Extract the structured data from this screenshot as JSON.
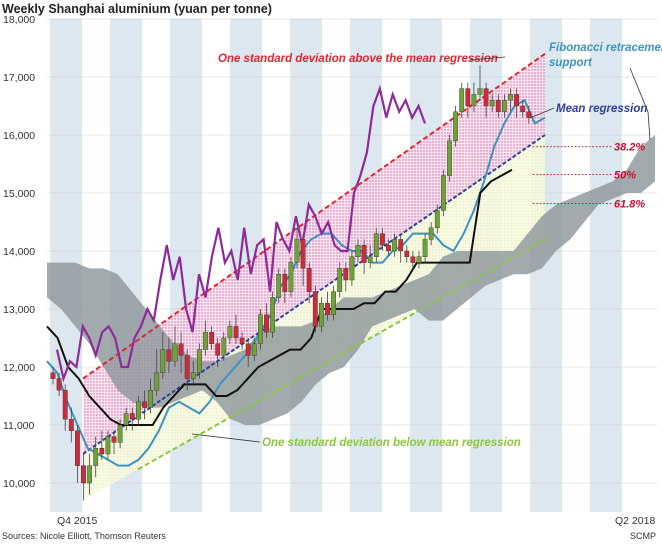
{
  "chart_data": {
    "type": "candlestick",
    "title": "Weekly Shanghai aluminium (yuan per tonne)",
    "ylim": [
      9500,
      18000
    ],
    "y_ticks": [
      "18,000",
      "17,000",
      "16,000",
      "15,000",
      "14,000",
      "13,000",
      "12,000",
      "11,000",
      "10,000"
    ],
    "y_tick_values": [
      18000,
      17000,
      16000,
      15000,
      14000,
      13000,
      12000,
      11000,
      10000
    ],
    "x_labels": [
      "Q4 2015",
      "Q2 2018"
    ],
    "candles": [
      {
        "o": 11900,
        "c": 11800,
        "h": 12000,
        "l": 11700
      },
      {
        "o": 11800,
        "c": 11600,
        "h": 11900,
        "l": 11500
      },
      {
        "o": 11600,
        "c": 11100,
        "h": 11700,
        "l": 10900
      },
      {
        "o": 11100,
        "c": 10900,
        "h": 11300,
        "l": 10700
      },
      {
        "o": 10900,
        "c": 10300,
        "h": 11000,
        "l": 10000
      },
      {
        "o": 10300,
        "c": 10000,
        "h": 10500,
        "l": 9700
      },
      {
        "o": 10000,
        "c": 10300,
        "h": 10500,
        "l": 9800
      },
      {
        "o": 10300,
        "c": 10600,
        "h": 10800,
        "l": 10100
      },
      {
        "o": 10600,
        "c": 10500,
        "h": 10900,
        "l": 10400
      },
      {
        "o": 10500,
        "c": 10800,
        "h": 10900,
        "l": 10400
      },
      {
        "o": 10800,
        "c": 10700,
        "h": 10900,
        "l": 10500
      },
      {
        "o": 10700,
        "c": 11000,
        "h": 11100,
        "l": 10600
      },
      {
        "o": 11000,
        "c": 11200,
        "h": 11300,
        "l": 10900
      },
      {
        "o": 11200,
        "c": 11100,
        "h": 11300,
        "l": 10900
      },
      {
        "o": 11100,
        "c": 11400,
        "h": 11500,
        "l": 11000
      },
      {
        "o": 11400,
        "c": 11300,
        "h": 11600,
        "l": 11100
      },
      {
        "o": 11300,
        "c": 11600,
        "h": 11800,
        "l": 11200
      },
      {
        "o": 11600,
        "c": 11900,
        "h": 12300,
        "l": 11500
      },
      {
        "o": 11900,
        "c": 12300,
        "h": 12600,
        "l": 11800
      },
      {
        "o": 12300,
        "c": 12100,
        "h": 12500,
        "l": 11900
      },
      {
        "o": 12100,
        "c": 12400,
        "h": 12700,
        "l": 12000
      },
      {
        "o": 12400,
        "c": 12200,
        "h": 12600,
        "l": 11900
      },
      {
        "o": 12200,
        "c": 11800,
        "h": 12300,
        "l": 11600
      },
      {
        "o": 11800,
        "c": 11900,
        "h": 12100,
        "l": 11700
      },
      {
        "o": 11900,
        "c": 12300,
        "h": 12400,
        "l": 11800
      },
      {
        "o": 12300,
        "c": 12600,
        "h": 12800,
        "l": 12200
      },
      {
        "o": 12600,
        "c": 12400,
        "h": 12700,
        "l": 12300
      },
      {
        "o": 12400,
        "c": 12200,
        "h": 12500,
        "l": 12000
      },
      {
        "o": 12200,
        "c": 12500,
        "h": 12600,
        "l": 12100
      },
      {
        "o": 12500,
        "c": 12700,
        "h": 12800,
        "l": 12400
      },
      {
        "o": 12700,
        "c": 12500,
        "h": 12900,
        "l": 12400
      },
      {
        "o": 12500,
        "c": 12400,
        "h": 12600,
        "l": 12300
      },
      {
        "o": 12400,
        "c": 12200,
        "h": 12500,
        "l": 12000
      },
      {
        "o": 12200,
        "c": 12400,
        "h": 12500,
        "l": 12100
      },
      {
        "o": 12400,
        "c": 12900,
        "h": 13000,
        "l": 12300
      },
      {
        "o": 12900,
        "c": 12600,
        "h": 13100,
        "l": 12500
      },
      {
        "o": 12600,
        "c": 13200,
        "h": 13300,
        "l": 12500
      },
      {
        "o": 13200,
        "c": 13600,
        "h": 13700,
        "l": 13100
      },
      {
        "o": 13600,
        "c": 13300,
        "h": 13700,
        "l": 13100
      },
      {
        "o": 13300,
        "c": 13800,
        "h": 13900,
        "l": 13200
      },
      {
        "o": 13800,
        "c": 14200,
        "h": 14400,
        "l": 13700
      },
      {
        "o": 14200,
        "c": 13700,
        "h": 14300,
        "l": 13400
      },
      {
        "o": 13700,
        "c": 13300,
        "h": 13800,
        "l": 13100
      },
      {
        "o": 13300,
        "c": 12700,
        "h": 13400,
        "l": 12600
      },
      {
        "o": 12700,
        "c": 13100,
        "h": 13200,
        "l": 12600
      },
      {
        "o": 13100,
        "c": 12900,
        "h": 13300,
        "l": 12800
      },
      {
        "o": 12900,
        "c": 13300,
        "h": 13400,
        "l": 12800
      },
      {
        "o": 13300,
        "c": 13700,
        "h": 13800,
        "l": 13200
      },
      {
        "o": 13700,
        "c": 13500,
        "h": 13800,
        "l": 13300
      },
      {
        "o": 13500,
        "c": 13900,
        "h": 14000,
        "l": 13400
      },
      {
        "o": 13900,
        "c": 14100,
        "h": 14200,
        "l": 13800
      },
      {
        "o": 14100,
        "c": 13800,
        "h": 14200,
        "l": 13600
      },
      {
        "o": 13800,
        "c": 13900,
        "h": 14100,
        "l": 13700
      },
      {
        "o": 13900,
        "c": 14300,
        "h": 14400,
        "l": 13800
      },
      {
        "o": 14300,
        "c": 14100,
        "h": 14400,
        "l": 14000
      },
      {
        "o": 14100,
        "c": 14000,
        "h": 14200,
        "l": 13900
      },
      {
        "o": 14000,
        "c": 14200,
        "h": 14300,
        "l": 13900
      },
      {
        "o": 14200,
        "c": 14000,
        "h": 14300,
        "l": 13800
      },
      {
        "o": 14000,
        "c": 13900,
        "h": 14100,
        "l": 13800
      },
      {
        "o": 13900,
        "c": 13800,
        "h": 14000,
        "l": 13700
      },
      {
        "o": 13800,
        "c": 13900,
        "h": 14000,
        "l": 13700
      },
      {
        "o": 13900,
        "c": 14200,
        "h": 14300,
        "l": 13800
      },
      {
        "o": 14200,
        "c": 14400,
        "h": 14500,
        "l": 14100
      },
      {
        "o": 14400,
        "c": 14700,
        "h": 14800,
        "l": 14300
      },
      {
        "o": 14700,
        "c": 15300,
        "h": 15400,
        "l": 14600
      },
      {
        "o": 15300,
        "c": 15900,
        "h": 16000,
        "l": 15200
      },
      {
        "o": 15900,
        "c": 16400,
        "h": 16500,
        "l": 15800
      },
      {
        "o": 16400,
        "c": 16800,
        "h": 16900,
        "l": 16300
      },
      {
        "o": 16800,
        "c": 16500,
        "h": 16900,
        "l": 16300
      },
      {
        "o": 16500,
        "c": 16700,
        "h": 16900,
        "l": 16400
      },
      {
        "o": 16700,
        "c": 16800,
        "h": 17200,
        "l": 16600
      },
      {
        "o": 16800,
        "c": 16500,
        "h": 16900,
        "l": 16300
      },
      {
        "o": 16500,
        "c": 16600,
        "h": 16700,
        "l": 16400
      },
      {
        "o": 16600,
        "c": 16400,
        "h": 16700,
        "l": 16300
      },
      {
        "o": 16400,
        "c": 16600,
        "h": 16700,
        "l": 16300
      },
      {
        "o": 16600,
        "c": 16700,
        "h": 16800,
        "l": 16400
      },
      {
        "o": 16700,
        "c": 16500,
        "h": 16800,
        "l": 16300
      },
      {
        "o": 16500,
        "c": 16400,
        "h": 16600,
        "l": 16300
      },
      {
        "o": 16400,
        "c": 16300,
        "h": 16500,
        "l": 16200
      }
    ],
    "purple_series": [
      12300,
      11800,
      12100,
      12000,
      12700,
      12500,
      12200,
      12600,
      12700,
      12500,
      12000,
      12000,
      12500,
      12700,
      13000,
      12800,
      13500,
      14100,
      13500,
      13900,
      13000,
      12600,
      13600,
      13200,
      13900,
      14400,
      13800,
      14000,
      13500,
      14400,
      13600,
      14100,
      14200,
      13300,
      14500,
      14200,
      14000,
      14600,
      14100,
      14800,
      14600,
      14300,
      14500,
      14100,
      14000,
      14000,
      15000,
      15300,
      15700,
      16500,
      16800,
      16300,
      16700,
      16400,
      16600,
      16300,
      16500,
      16200
    ],
    "black_series": [
      12700,
      12500,
      12000,
      11800,
      11500,
      11300,
      11100,
      11000,
      11000,
      11000,
      11000,
      11300,
      11500,
      11700,
      11700,
      11700,
      11500,
      11500,
      11600,
      11800,
      12000,
      12100,
      12200,
      12300,
      12300,
      12500,
      13000,
      13000,
      13000,
      13000,
      13100,
      13100,
      13300,
      13300,
      13500,
      13800,
      13800,
      13800,
      13800,
      13800,
      13800,
      15000,
      15200,
      15300,
      15400
    ],
    "blue_series": [
      12100,
      11900,
      11400,
      11000,
      10600,
      10500,
      10400,
      10300,
      10300,
      10400,
      10600,
      10900,
      11300,
      11400,
      11300,
      11200,
      11400,
      11700,
      11900,
      12100,
      12300,
      12600,
      12900,
      13400,
      13600,
      14000,
      14200,
      14300,
      14300,
      14100,
      14000,
      14000,
      13800,
      13800,
      14000,
      14100,
      14300,
      14300,
      14300,
      14100,
      14000,
      14300,
      14700,
      15200,
      15800,
      16200,
      16500,
      16600,
      16200,
      16300
    ],
    "cloud_top": [
      13800,
      13800,
      13800,
      13700,
      13700,
      13600,
      13300,
      13000,
      12700,
      12400,
      12200,
      12100,
      12100,
      12200,
      12300,
      12600,
      12700,
      12700,
      12700,
      12800,
      13000,
      13200,
      13200,
      13200,
      13300,
      13400,
      13500,
      13600,
      13900,
      14000,
      14000,
      14000,
      14000,
      14000,
      14300,
      14600,
      14800,
      14900,
      15000,
      15100,
      15200,
      15400,
      15800,
      16000
    ],
    "cloud_bottom": [
      13200,
      13000,
      12700,
      12400,
      12000,
      11600,
      11400,
      11300,
      11300,
      11400,
      11500,
      11600,
      11400,
      11100,
      11000,
      11000,
      11100,
      11200,
      11400,
      11700,
      11900,
      12000,
      12300,
      12700,
      12800,
      12900,
      13000,
      12800,
      12800,
      13000,
      13200,
      13400,
      13500,
      13600,
      13600,
      13700,
      14000,
      14200,
      14500,
      14800,
      14900,
      15000,
      15000,
      15200
    ],
    "regression": {
      "start_value": 10500,
      "end_value": 16000
    },
    "upper_band": {
      "start_value": 11800,
      "end_value": 17400
    },
    "lower_band": {
      "start_value": 9700,
      "end_value": 14200
    },
    "fib_levels": [
      {
        "label": "38.2%",
        "value": 15800
      },
      {
        "label": "50%",
        "value": 15320
      },
      {
        "label": "61.8%",
        "value": 14820
      }
    ],
    "annotations": {
      "upper": "One standard deviation above the mean regression",
      "fib": "Fibonacci retracement support",
      "regression": "Mean regression",
      "lower": "One standard deviation below mean regression"
    },
    "source": "Sources: Nicole Elliott, Thomson Reuters",
    "credit": "SCMP",
    "colors": {
      "band_stripe": "#dce7ef",
      "candle_up": "#6fa33a",
      "candle_down": "#cf2a3a",
      "purple": "#8e2a9a",
      "black": "#111111",
      "blue": "#3d93bf",
      "cloud": "#8f979c",
      "upper_line": "#e0262e",
      "regression_line": "#2f3f9e",
      "lower_line": "#8dc63f",
      "fib_text": "#c8102e"
    }
  }
}
